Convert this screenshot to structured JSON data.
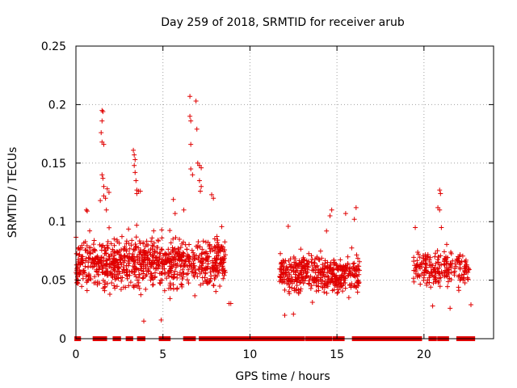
{
  "chart_data": {
    "type": "scatter",
    "title": "Day 259 of 2018, SRMTID for receiver arub",
    "xlabel": "GPS time / hours",
    "ylabel": "SRMTID / TECUs",
    "xlim": [
      0,
      24
    ],
    "ylim": [
      0,
      0.25
    ],
    "grid": true,
    "x_ticks": [
      {
        "value": 0,
        "label": "0"
      },
      {
        "value": 5,
        "label": "5"
      },
      {
        "value": 10,
        "label": "10"
      },
      {
        "value": 15,
        "label": "15"
      },
      {
        "value": 20,
        "label": "20"
      }
    ],
    "y_ticks": [
      {
        "value": 0,
        "label": "0"
      },
      {
        "value": 0.05,
        "label": "0.05"
      },
      {
        "value": 0.1,
        "label": "0.1"
      },
      {
        "value": 0.15,
        "label": "0.15"
      },
      {
        "value": 0.2,
        "label": "0.2"
      },
      {
        "value": 0.25,
        "label": "0.25"
      }
    ],
    "marker": "+",
    "color": "#e00000",
    "series": [
      {
        "name": "SRMTID",
        "clusters": [
          {
            "x_range": [
              0.0,
              8.6
            ],
            "y_center": 0.065,
            "y_spread": 0.028,
            "count": 900
          },
          {
            "x_range": [
              11.7,
              16.3
            ],
            "y_center": 0.055,
            "y_spread": 0.02,
            "count": 450
          },
          {
            "x_range": [
              19.4,
              22.6
            ],
            "y_center": 0.06,
            "y_spread": 0.02,
            "count": 220
          }
        ],
        "points": [
          [
            1.5,
            0.195
          ],
          [
            1.55,
            0.194
          ],
          [
            1.5,
            0.186
          ],
          [
            1.45,
            0.176
          ],
          [
            1.5,
            0.168
          ],
          [
            1.6,
            0.166
          ],
          [
            1.5,
            0.14
          ],
          [
            1.55,
            0.137
          ],
          [
            1.6,
            0.13
          ],
          [
            1.8,
            0.128
          ],
          [
            1.9,
            0.125
          ],
          [
            1.6,
            0.122
          ],
          [
            1.7,
            0.12
          ],
          [
            1.75,
            0.11
          ],
          [
            1.4,
            0.118
          ],
          [
            3.3,
            0.161
          ],
          [
            3.35,
            0.157
          ],
          [
            3.4,
            0.153
          ],
          [
            3.35,
            0.148
          ],
          [
            3.4,
            0.142
          ],
          [
            3.45,
            0.135
          ],
          [
            3.5,
            0.127
          ],
          [
            3.6,
            0.126
          ],
          [
            3.7,
            0.126
          ],
          [
            3.5,
            0.124
          ],
          [
            6.55,
            0.207
          ],
          [
            6.9,
            0.203
          ],
          [
            6.55,
            0.19
          ],
          [
            6.6,
            0.186
          ],
          [
            6.95,
            0.179
          ],
          [
            6.6,
            0.166
          ],
          [
            7.0,
            0.15
          ],
          [
            7.1,
            0.148
          ],
          [
            7.2,
            0.146
          ],
          [
            6.6,
            0.145
          ],
          [
            6.7,
            0.14
          ],
          [
            7.1,
            0.135
          ],
          [
            7.2,
            0.13
          ],
          [
            7.15,
            0.126
          ],
          [
            7.8,
            0.123
          ],
          [
            7.9,
            0.12
          ],
          [
            0.6,
            0.11
          ],
          [
            0.65,
            0.109
          ],
          [
            5.6,
            0.119
          ],
          [
            5.7,
            0.107
          ],
          [
            6.2,
            0.11
          ],
          [
            14.7,
            0.11
          ],
          [
            14.6,
            0.105
          ],
          [
            16.1,
            0.112
          ],
          [
            15.5,
            0.107
          ],
          [
            16.0,
            0.102
          ],
          [
            12.2,
            0.096
          ],
          [
            14.4,
            0.092
          ],
          [
            19.5,
            0.095
          ],
          [
            20.9,
            0.127
          ],
          [
            20.95,
            0.124
          ],
          [
            20.8,
            0.112
          ],
          [
            20.9,
            0.11
          ],
          [
            21.0,
            0.095
          ],
          [
            3.9,
            0.015
          ],
          [
            4.9,
            0.016
          ],
          [
            12.0,
            0.02
          ],
          [
            12.5,
            0.021
          ],
          [
            20.5,
            0.028
          ],
          [
            21.5,
            0.026
          ],
          [
            22.7,
            0.029
          ],
          [
            8.8,
            0.03
          ],
          [
            8.9,
            0.03
          ]
        ],
        "zero_runs": [
          [
            0.05,
            0.15
          ],
          [
            1.1,
            1.65
          ],
          [
            2.25,
            2.45
          ],
          [
            3.0,
            3.15
          ],
          [
            3.65,
            3.85
          ],
          [
            4.9,
            5.3
          ],
          [
            6.3,
            6.75
          ],
          [
            7.2,
            7.5
          ],
          [
            7.75,
            8.6
          ],
          [
            8.6,
            12.1
          ],
          [
            12.3,
            13.0
          ],
          [
            13.3,
            14.6
          ],
          [
            14.9,
            15.3
          ],
          [
            16.0,
            17.4
          ],
          [
            17.5,
            19.4
          ],
          [
            19.5,
            19.75
          ],
          [
            20.4,
            20.6
          ],
          [
            20.9,
            21.3
          ],
          [
            22.0,
            22.4
          ],
          [
            22.6,
            22.8
          ]
        ]
      }
    ]
  }
}
